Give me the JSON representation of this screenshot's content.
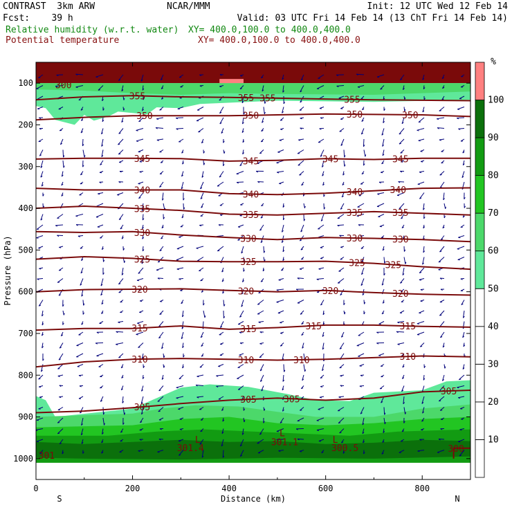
{
  "header": {
    "line1_left": "CONTRAST  3km ARW",
    "line1_mid": "NCAR/MMM",
    "line1_right": "Init: 12 UTC Wed 12 Feb 14",
    "line2_left": "Fcst:    39 h",
    "line2_right": "Valid: 03 UTC Fri 14 Feb 14 (13 ChT Fri 14 Feb 14)",
    "field1": "Relative humidity (w.r.t. water)",
    "field1_xy": "XY= 400.0,100.0 to 400.0,400.0",
    "field2": "Potential temperature",
    "field2_xy": "XY= 400.0,100.0 to 400.0,400.0"
  },
  "colors": {
    "rh_label": "#118811",
    "theta_label": "#881111",
    "theta_line": "#7a0a0a",
    "wind": "#00007a",
    "rh_levels": [
      "#ffffff",
      "#ffffff",
      "#ffffff",
      "#ffffff",
      "#ffffff",
      "#5fe89a",
      "#4cd86a",
      "#22c522",
      "#129b12",
      "#0b700b",
      "#ff8080"
    ]
  },
  "chart_data": {
    "type": "contour",
    "xlabel": "Distance (km)",
    "ylabel": "Pressure (hPa)",
    "xlim": [
      0,
      900
    ],
    "ylim": [
      1050,
      50
    ],
    "x_ticks": [
      0,
      200,
      400,
      600,
      800
    ],
    "x_tick_labels": [
      "0",
      "200",
      "400",
      "600",
      "800"
    ],
    "y_ticks": [
      100,
      200,
      300,
      400,
      500,
      600,
      700,
      800,
      900,
      1000
    ],
    "y_tick_labels": [
      "100",
      "200",
      "300",
      "400",
      "500",
      "600",
      "700",
      "800",
      "900",
      "1000"
    ],
    "x_end_labels": {
      "left": "S",
      "right": "N"
    },
    "colorbar": {
      "unit": "%",
      "levels": [
        0,
        10,
        20,
        30,
        40,
        50,
        60,
        70,
        80,
        90,
        100,
        110
      ],
      "tick_labels": [
        "10",
        "20",
        "30",
        "40",
        "50",
        "60",
        "70",
        "80",
        "90",
        "100"
      ]
    },
    "theta_contours": [
      {
        "value": 355,
        "label": "355",
        "points": [
          [
            0,
            140
          ],
          [
            100,
            133
          ],
          [
            200,
            130
          ],
          [
            300,
            133
          ],
          [
            400,
            134
          ],
          [
            500,
            136
          ],
          [
            600,
            138
          ],
          [
            700,
            140
          ],
          [
            800,
            141
          ],
          [
            900,
            142
          ]
        ],
        "labels_x": [
          210,
          435,
          480,
          655
        ]
      },
      {
        "value": 350,
        "label": "350",
        "points": [
          [
            0,
            188
          ],
          [
            100,
            182
          ],
          [
            200,
            178
          ],
          [
            300,
            178
          ],
          [
            400,
            178
          ],
          [
            500,
            176
          ],
          [
            600,
            174
          ],
          [
            700,
            175
          ],
          [
            800,
            176
          ],
          [
            900,
            180
          ]
        ],
        "labels_x": [
          225,
          445,
          660,
          775
        ]
      },
      {
        "value": 345,
        "label": "345",
        "points": [
          [
            0,
            282
          ],
          [
            100,
            280
          ],
          [
            200,
            280
          ],
          [
            300,
            281
          ],
          [
            400,
            287
          ],
          [
            500,
            285
          ],
          [
            600,
            281
          ],
          [
            700,
            283
          ],
          [
            800,
            280
          ],
          [
            900,
            280
          ]
        ],
        "labels_x": [
          220,
          445,
          610,
          755
        ]
      },
      {
        "value": 340,
        "label": "340",
        "points": [
          [
            0,
            352
          ],
          [
            100,
            356
          ],
          [
            200,
            356
          ],
          [
            300,
            356
          ],
          [
            400,
            365
          ],
          [
            500,
            367
          ],
          [
            600,
            364
          ],
          [
            700,
            358
          ],
          [
            800,
            352
          ],
          [
            900,
            351
          ]
        ],
        "labels_x": [
          220,
          445,
          660,
          750
        ]
      },
      {
        "value": 335,
        "label": "335",
        "points": [
          [
            0,
            400
          ],
          [
            100,
            395
          ],
          [
            200,
            400
          ],
          [
            300,
            405
          ],
          [
            400,
            414
          ],
          [
            500,
            416
          ],
          [
            600,
            412
          ],
          [
            700,
            408
          ],
          [
            800,
            412
          ],
          [
            900,
            416
          ]
        ],
        "labels_x": [
          220,
          445,
          660,
          755
        ]
      },
      {
        "value": 330,
        "label": "330",
        "points": [
          [
            0,
            456
          ],
          [
            100,
            458
          ],
          [
            200,
            456
          ],
          [
            300,
            464
          ],
          [
            400,
            470
          ],
          [
            500,
            475
          ],
          [
            600,
            470
          ],
          [
            700,
            472
          ],
          [
            800,
            475
          ],
          [
            900,
            480
          ]
        ],
        "labels_x": [
          220,
          440,
          660,
          755
        ]
      },
      {
        "value": 325,
        "label": "325",
        "points": [
          [
            0,
            522
          ],
          [
            100,
            516
          ],
          [
            200,
            520
          ],
          [
            300,
            527
          ],
          [
            400,
            528
          ],
          [
            500,
            528
          ],
          [
            600,
            527
          ],
          [
            700,
            532
          ],
          [
            800,
            540
          ],
          [
            900,
            546
          ]
        ],
        "labels_x": [
          220,
          440,
          665,
          740
        ]
      },
      {
        "value": 320,
        "label": "320",
        "points": [
          [
            0,
            600
          ],
          [
            100,
            595
          ],
          [
            200,
            594
          ],
          [
            300,
            593
          ],
          [
            400,
            597
          ],
          [
            500,
            600
          ],
          [
            600,
            597
          ],
          [
            700,
            602
          ],
          [
            800,
            606
          ],
          [
            900,
            608
          ]
        ],
        "labels_x": [
          215,
          435,
          610,
          755
        ]
      },
      {
        "value": 315,
        "label": "315",
        "points": [
          [
            0,
            692
          ],
          [
            100,
            688
          ],
          [
            200,
            688
          ],
          [
            300,
            682
          ],
          [
            400,
            690
          ],
          [
            500,
            686
          ],
          [
            600,
            680
          ],
          [
            700,
            680
          ],
          [
            800,
            683
          ],
          [
            900,
            685
          ]
        ],
        "labels_x": [
          215,
          440,
          575,
          770
        ]
      },
      {
        "value": 310,
        "label": "310",
        "points": [
          [
            0,
            780
          ],
          [
            100,
            768
          ],
          [
            200,
            762
          ],
          [
            300,
            760
          ],
          [
            400,
            762
          ],
          [
            500,
            764
          ],
          [
            600,
            762
          ],
          [
            700,
            758
          ],
          [
            800,
            754
          ],
          [
            900,
            756
          ]
        ],
        "labels_x": [
          215,
          435,
          550,
          770
        ]
      },
      {
        "value": 305,
        "label": "305",
        "points": [
          [
            0,
            890
          ],
          [
            100,
            886
          ],
          [
            200,
            878
          ],
          [
            300,
            868
          ],
          [
            400,
            860
          ],
          [
            500,
            855
          ],
          [
            600,
            860
          ],
          [
            700,
            855
          ],
          [
            800,
            840
          ],
          [
            900,
            836
          ]
        ],
        "labels_x": [
          220,
          440,
          530,
          855
        ]
      },
      {
        "value": 300,
        "label": "300",
        "points": [
          [
            865,
            1000
          ],
          [
            865,
            975
          ],
          [
            900,
            975
          ]
        ],
        "labels_x": [
          870
        ]
      }
    ],
    "annotations": [
      {
        "text": "301.4",
        "x": 320,
        "p": 982
      },
      {
        "text": "301.1",
        "x": 515,
        "p": 968
      },
      {
        "text": "300.5",
        "x": 640,
        "p": 982
      },
      {
        "text": "L",
        "x": 335,
        "p": 962
      },
      {
        "text": "L",
        "x": 510,
        "p": 946
      },
      {
        "text": "L",
        "x": 620,
        "p": 962
      },
      {
        "text": "300",
        "x": 57,
        "p": 112
      },
      {
        "text": "301",
        "x": 22,
        "p": 1000
      }
    ]
  }
}
